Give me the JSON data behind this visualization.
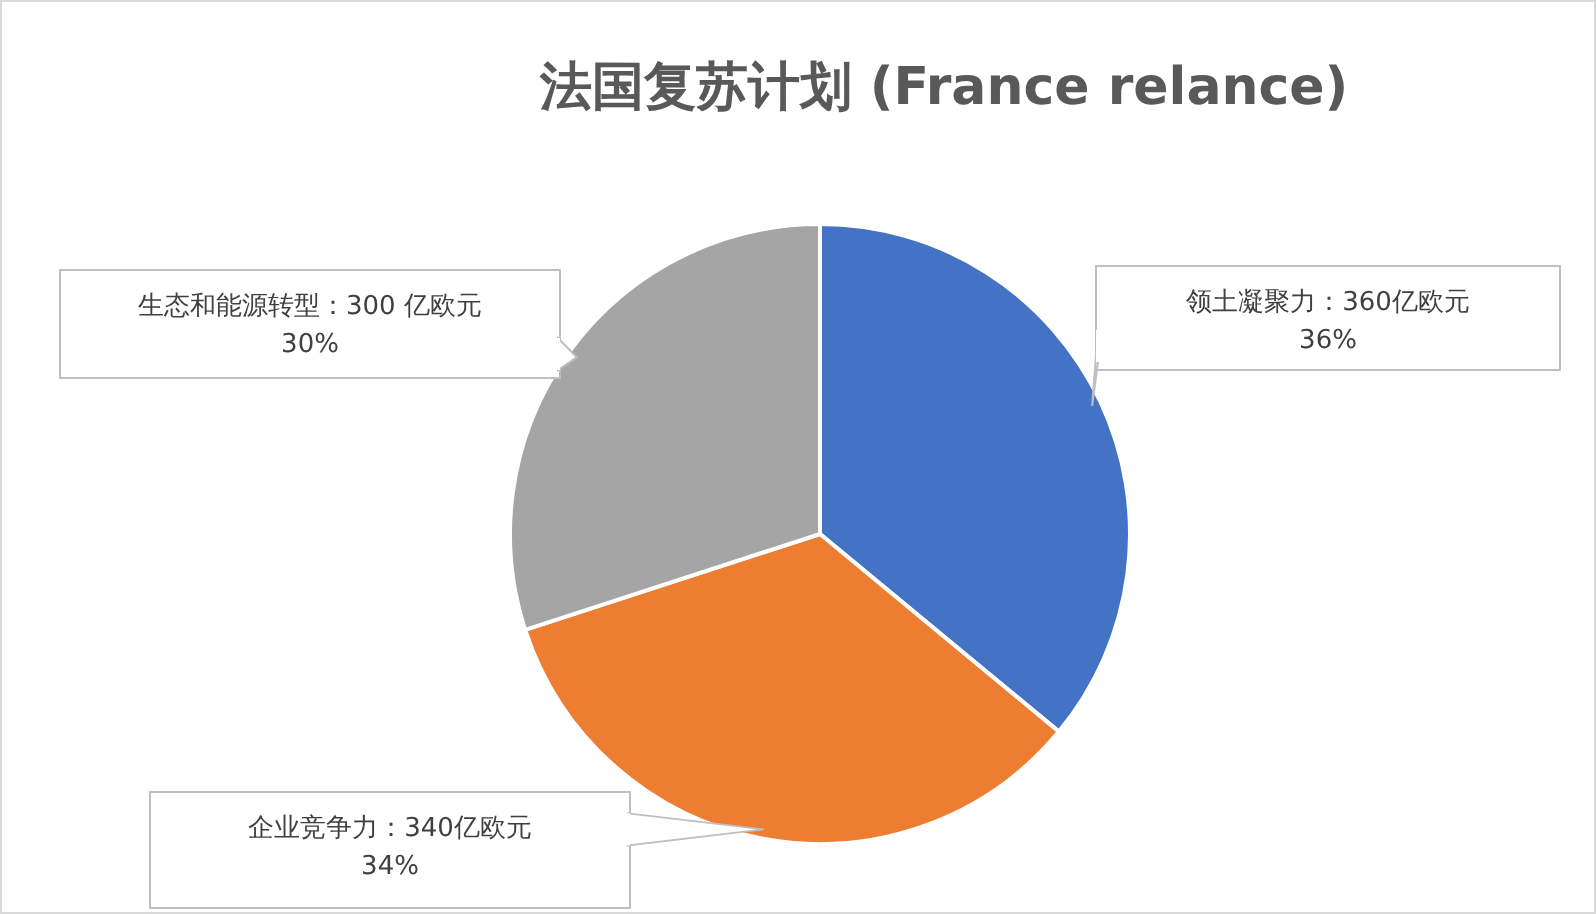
{
  "chart_data": {
    "type": "pie",
    "title": "法国复苏计划 (France relance)",
    "categories": [
      "领土凝聚力",
      "企业竞争力",
      "生态和能源转型"
    ],
    "values": [
      360,
      340,
      300
    ],
    "value_labels": [
      "：360亿欧元\n36%",
      "：340亿欧元\n34%",
      "：300 亿欧元\n30%"
    ],
    "colors": [
      "#4472c4",
      "#ed7d31",
      "#a5a5a5"
    ]
  }
}
